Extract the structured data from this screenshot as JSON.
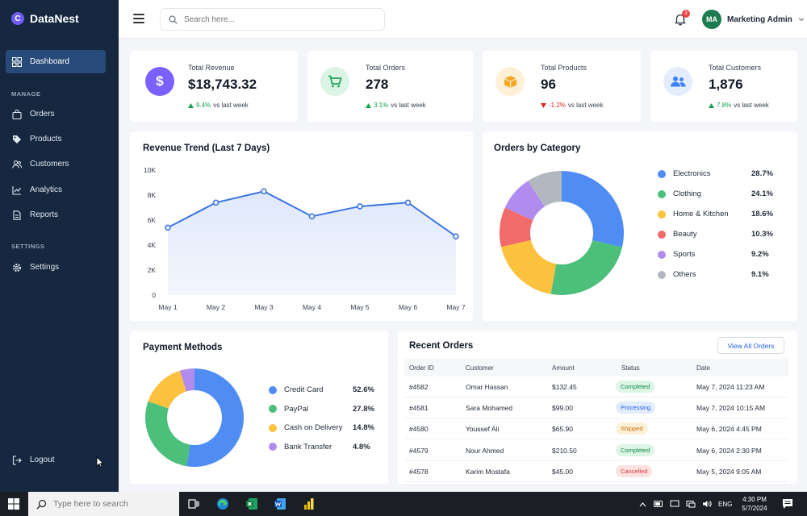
{
  "brand": {
    "name": "DataNest",
    "logo_letter": "C"
  },
  "sidebar": {
    "dashboard": "Dashboard",
    "manage_heading": "MANAGE",
    "orders": "Orders",
    "products": "Products",
    "customers": "Customers",
    "analytics": "Analytics",
    "reports": "Reports",
    "settings_heading": "SETTINGS",
    "settings": "Settings",
    "logout": "Logout"
  },
  "topbar": {
    "search_placeholder": "Search here...",
    "notification_count": "3",
    "user_initials": "MA",
    "user_name": "Marketing Admin"
  },
  "stats": {
    "revenue": {
      "label": "Total Revenue",
      "value": "$18,743.32",
      "change": "9.4%",
      "suffix": "vs last week",
      "color": "#7b61ff"
    },
    "orders": {
      "label": "Total Orders",
      "value": "278",
      "change": "3.1%",
      "suffix": "vs last week",
      "color": "#22a35a"
    },
    "products": {
      "label": "Total Products",
      "value": "96",
      "change": "-1.2%",
      "suffix": "vs last week",
      "color": "#f5a623"
    },
    "customers": {
      "label": "Total Customers",
      "value": "1,876",
      "change": "7.8%",
      "suffix": "vs last week",
      "color": "#3b82f6"
    }
  },
  "revenue_chart": {
    "title": "Revenue Trend (Last 7 Days)",
    "y_ticks": [
      "0",
      "2K",
      "4K",
      "6K",
      "8K",
      "10K"
    ]
  },
  "category_chart": {
    "title": "Orders by Category"
  },
  "payment_chart": {
    "title": "Payment Methods"
  },
  "chart_data": [
    {
      "type": "area",
      "title": "Revenue Trend (Last 7 Days)",
      "categories": [
        "May 1",
        "May 2",
        "May 3",
        "May 4",
        "May 5",
        "May 6",
        "May 7"
      ],
      "values": [
        5400,
        7400,
        8300,
        6300,
        7100,
        7400,
        4700
      ],
      "ylim": [
        0,
        10000
      ],
      "grid": false,
      "color": "#3b76e1"
    },
    {
      "type": "pie",
      "title": "Orders by Category",
      "labels": [
        "Electronics",
        "Clothing",
        "Home & Kitchen",
        "Beauty",
        "Sports",
        "Others"
      ],
      "display": [
        "28.7%",
        "24.1%",
        "18.6%",
        "10.3%",
        "9.2%",
        "9.1%"
      ],
      "values": [
        28.7,
        24.1,
        18.6,
        10.3,
        9.2,
        9.1
      ],
      "colors": [
        "#4f8df5",
        "#4cbf7a",
        "#fcc13d",
        "#f26b6b",
        "#b18cef",
        "#b3b8c0"
      ]
    },
    {
      "type": "pie",
      "title": "Payment Methods",
      "labels": [
        "Credit Card",
        "PayPal",
        "Cash on Delivery",
        "Bank Transfer"
      ],
      "display": [
        "52.6%",
        "27.8%",
        "14.8%",
        "4.8%"
      ],
      "values": [
        52.6,
        27.8,
        14.8,
        4.8
      ],
      "colors": [
        "#4f8df5",
        "#4cbf7a",
        "#fcc13d",
        "#b18cef"
      ]
    }
  ],
  "recent_orders": {
    "title": "Recent Orders",
    "view_all": "View All Orders",
    "headers": [
      "Order ID",
      "Customer",
      "Amount",
      "Status",
      "Date"
    ],
    "rows": [
      {
        "id": "#4582",
        "customer": "Omar Hassan",
        "amount": "$132.45",
        "status": "Completed",
        "date": "May 7, 2024 11:23 AM"
      },
      {
        "id": "#4581",
        "customer": "Sara Mohamed",
        "amount": "$99.00",
        "status": "Processing",
        "date": "May 7, 2024 10:15 AM"
      },
      {
        "id": "#4580",
        "customer": "Youssef Ali",
        "amount": "$65.90",
        "status": "Shipped",
        "date": "May 6, 2024 4:45 PM"
      },
      {
        "id": "#4579",
        "customer": "Nour Ahmed",
        "amount": "$210.50",
        "status": "Completed",
        "date": "May 6, 2024 2:30 PM"
      },
      {
        "id": "#4578",
        "customer": "Karim Mostafa",
        "amount": "$45.00",
        "status": "Cancelled",
        "date": "May 5, 2024 9:05 AM"
      }
    ],
    "status_colors": {
      "Completed": {
        "bg": "#dcf5e5",
        "fg": "#16874a"
      },
      "Processing": {
        "bg": "#e2ecfd",
        "fg": "#2563eb"
      },
      "Shipped": {
        "bg": "#fdf0d9",
        "fg": "#c2740b"
      },
      "Cancelled": {
        "bg": "#fde2e2",
        "fg": "#d33a3a"
      }
    }
  },
  "taskbar": {
    "search_placeholder": "Type here to search",
    "language": "ENG",
    "time": "4:30 PM",
    "date": "5/7/2024"
  }
}
